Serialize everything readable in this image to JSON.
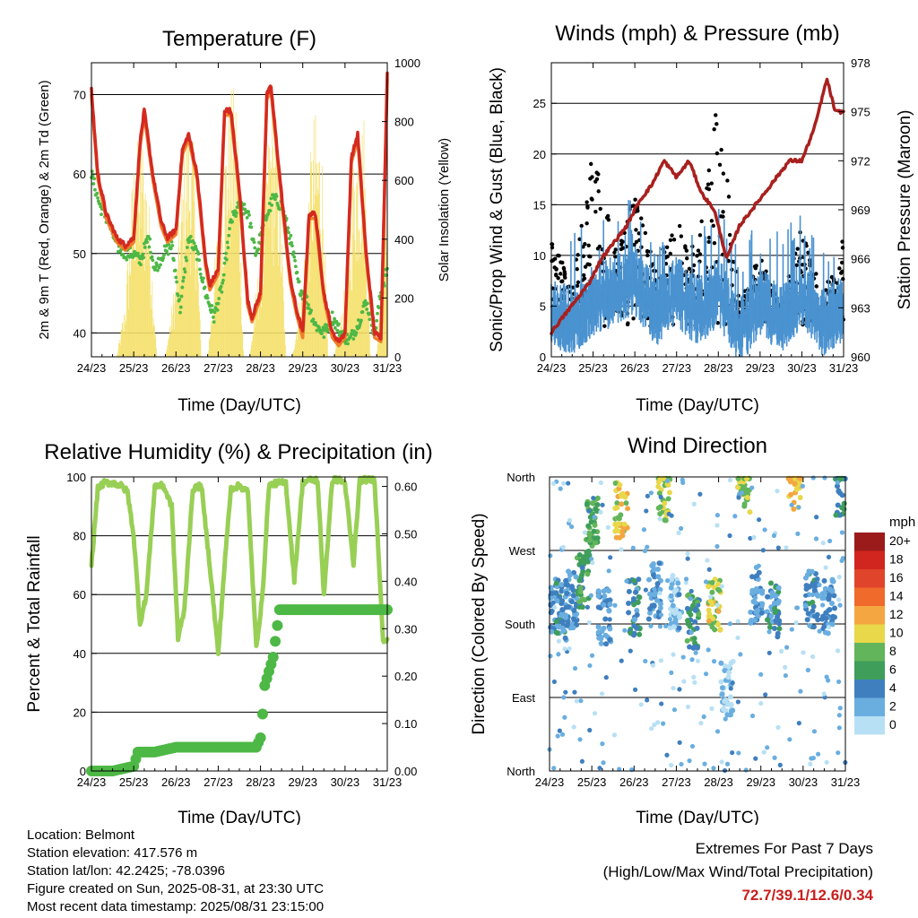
{
  "panels": {
    "temperature": {
      "title": "Temperature (F)",
      "ylabel_left": "2m & 9m T (Red, Orange) & 2m Td (Green)",
      "ylabel_right": "Solar Insolation (Yellow)",
      "xlabel": "Time (Day/UTC)"
    },
    "winds": {
      "title": "Winds (mph) & Pressure (mb)",
      "ylabel_left": "Sonic/Prop Wind & Gust (Blue, Black)",
      "ylabel_right": "Station Pressure (Maroon)",
      "xlabel": "Time (Day/UTC)"
    },
    "humidity": {
      "title": "Relative Humidity (%) & Precipitation (in)",
      "ylabel_left": "Percent & Total Rainfall",
      "xlabel": "Time (Day/UTC)"
    },
    "direction": {
      "title": "Wind Direction",
      "ylabel_left": "Direction (Colored By Speed)",
      "xlabel": "Time (Day/UTC)",
      "legend_title": "mph",
      "legend_labels": [
        "20+",
        "18",
        "16",
        "14",
        "12",
        "10",
        "8",
        "6",
        "4",
        "2",
        "0"
      ],
      "legend_colors": [
        "#9b1b1b",
        "#d0261f",
        "#e0442a",
        "#f06a2c",
        "#f4a640",
        "#e8d84a",
        "#62b55a",
        "#3e9e5a",
        "#3f7fbf",
        "#6aaee0",
        "#b8e0f4"
      ]
    }
  },
  "info": {
    "location": "Location: Belmont",
    "elevation": "Station elevation: 417.576 m",
    "latlon": "Station lat/lon: 42.2425; -78.0396",
    "created": "Figure created on Sun, 2025-08-31, at 23:30 UTC",
    "latest": "Most recent data timestamp: 2025/08/31 23:15:00"
  },
  "extremes": {
    "heading": "Extremes For Past 7 Days",
    "subheading": "(High/Low/Max Wind/Total Precipitation)",
    "values": "72.7/39.1/12.6/0.34"
  },
  "colors": {
    "temp_2m": "#d42a20",
    "temp_9m": "#f07d2a",
    "dewpoint": "#4db845",
    "solar": "#f5e06a",
    "wind": "#4a92d0",
    "gust": "#000000",
    "pressure": "#a8201e",
    "rh": "#98cf55",
    "precip": "#4db845"
  },
  "chart_data": [
    {
      "type": "line",
      "title": "Temperature (F)",
      "xlabel": "Time (Day/UTC)",
      "x_ticks": [
        "24/23",
        "25/23",
        "26/23",
        "27/23",
        "28/23",
        "29/23",
        "30/23",
        "31/23"
      ],
      "ylim": [
        37,
        74
      ],
      "y_ticks": [
        40,
        50,
        60,
        70
      ],
      "y2lim": [
        0,
        1000
      ],
      "y2_ticks": [
        0,
        200,
        400,
        600,
        800,
        1000
      ],
      "series": [
        {
          "name": "2m T",
          "x_days": [
            0,
            0.15,
            0.35,
            0.6,
            0.8,
            1.0,
            1.15,
            1.25,
            1.45,
            1.65,
            1.8,
            2.0,
            2.15,
            2.3,
            2.5,
            2.7,
            2.8,
            3.0,
            3.15,
            3.3,
            3.5,
            3.7,
            3.8,
            4.0,
            4.15,
            4.25,
            4.45,
            4.7,
            4.85,
            5.0,
            5.15,
            5.3,
            5.5,
            5.7,
            5.85,
            6.0,
            6.15,
            6.3,
            6.5,
            6.7,
            6.85,
            7.0
          ],
          "values": [
            70.5,
            60,
            55,
            52,
            51,
            52,
            64,
            68,
            60,
            54,
            52,
            53,
            63,
            65,
            60,
            49,
            46,
            48,
            68,
            68,
            58,
            44,
            42,
            45,
            70,
            71,
            60,
            47,
            43,
            40,
            55,
            55,
            45,
            40,
            39,
            40,
            62,
            65,
            50,
            40,
            39.5,
            72.5
          ]
        },
        {
          "name": "2m Td",
          "x_days": [
            0,
            0.2,
            0.4,
            0.6,
            0.8,
            1.0,
            1.15,
            1.35,
            1.5,
            1.7,
            1.9,
            2.1,
            2.3,
            2.5,
            2.7,
            2.9,
            3.1,
            3.3,
            3.5,
            3.7,
            3.9,
            4.1,
            4.3,
            4.5,
            4.7,
            4.9,
            5.1,
            5.3,
            5.5,
            5.7,
            5.9,
            6.1,
            6.3,
            6.5,
            6.7,
            6.85,
            7.0
          ],
          "values": [
            60,
            56,
            54,
            51,
            50,
            50,
            49,
            52,
            48,
            50,
            51,
            43,
            52,
            50,
            45,
            42,
            46,
            54,
            56,
            55,
            50,
            54,
            57,
            56,
            52,
            46,
            44,
            41,
            40,
            42,
            40,
            39,
            41,
            44,
            40,
            45,
            48
          ]
        },
        {
          "name": "Solar",
          "x_days": [
            0,
            0.6,
            0.8,
            1.0,
            1.2,
            1.35,
            1.55,
            1.75,
            2.0,
            2.25,
            2.45,
            2.6,
            2.75,
            3.0,
            3.25,
            3.45,
            3.6,
            3.75,
            4.0,
            4.25,
            4.45,
            4.6,
            4.75,
            5.0,
            5.25,
            5.45,
            5.6,
            5.75,
            6.0,
            6.25,
            6.45,
            6.6,
            6.75,
            7.0
          ],
          "values": [
            0,
            0,
            200,
            700,
            800,
            600,
            0,
            0,
            300,
            850,
            700,
            0,
            0,
            500,
            900,
            950,
            0,
            0,
            400,
            900,
            700,
            0,
            0,
            300,
            850,
            800,
            0,
            0,
            250,
            800,
            850,
            0,
            0,
            950
          ]
        }
      ]
    },
    {
      "type": "line",
      "title": "Winds (mph) & Pressure (mb)",
      "xlabel": "Time (Day/UTC)",
      "x_ticks": [
        "24/23",
        "25/23",
        "26/23",
        "27/23",
        "28/23",
        "29/23",
        "30/23",
        "31/23"
      ],
      "ylim": [
        0,
        29
      ],
      "y_ticks": [
        0,
        5,
        10,
        15,
        20,
        25
      ],
      "y2lim": [
        960,
        978
      ],
      "y2_ticks": [
        960,
        963,
        966,
        969,
        972,
        975,
        978
      ],
      "series": [
        {
          "name": "Pressure",
          "x_days": [
            0,
            0.3,
            0.6,
            0.9,
            1.2,
            1.5,
            1.8,
            2.1,
            2.4,
            2.7,
            3.0,
            3.3,
            3.6,
            3.9,
            4.2,
            4.5,
            4.8,
            5.1,
            5.4,
            5.7,
            6.0,
            6.3,
            6.6,
            6.8,
            7.0
          ],
          "values": [
            961.5,
            962.5,
            963.5,
            964.5,
            966,
            967,
            968,
            969.5,
            970.5,
            972,
            971,
            972,
            970,
            969,
            966,
            968,
            969,
            970,
            971,
            972,
            972,
            974,
            977,
            975,
            975
          ]
        },
        {
          "name": "Wind",
          "x_days": [
            0,
            0.5,
            1.0,
            1.5,
            2.0,
            2.5,
            3.0,
            3.5,
            4.0,
            4.5,
            5.0,
            5.5,
            6.0,
            6.5,
            7.0
          ],
          "values": [
            4,
            3,
            5,
            6,
            7,
            4,
            6,
            4,
            6,
            2,
            5,
            3,
            6,
            3,
            4
          ]
        },
        {
          "name": "Gust",
          "x_days": [
            0,
            0.5,
            1.0,
            1.5,
            2.0,
            2.5,
            3.0,
            3.5,
            4.0,
            4.5,
            5.0,
            5.5,
            6.0,
            6.5,
            7.0
          ],
          "values": [
            12,
            7,
            21,
            11,
            16,
            9,
            14,
            10,
            27,
            6,
            10,
            5,
            13,
            6,
            12
          ]
        }
      ]
    },
    {
      "type": "line",
      "title": "Relative Humidity (%) & Precipitation (in)",
      "xlabel": "Time (Day/UTC)",
      "x_ticks": [
        "24/23",
        "25/23",
        "26/23",
        "27/23",
        "28/23",
        "29/23",
        "30/23",
        "31/23"
      ],
      "ylim": [
        0,
        100
      ],
      "y_ticks": [
        0,
        20,
        40,
        60,
        80,
        100
      ],
      "y2lim": [
        0,
        0.62
      ],
      "y2_ticks": [
        0.0,
        0.1,
        0.2,
        0.3,
        0.4,
        0.5,
        0.6
      ],
      "series": [
        {
          "name": "RH",
          "x_days": [
            0,
            0.15,
            0.3,
            0.5,
            0.7,
            0.85,
            1.0,
            1.15,
            1.3,
            1.5,
            1.7,
            1.9,
            2.05,
            2.2,
            2.4,
            2.6,
            2.8,
            3.0,
            3.15,
            3.3,
            3.5,
            3.7,
            3.9,
            4.05,
            4.2,
            4.4,
            4.6,
            4.8,
            5.0,
            5.2,
            5.35,
            5.5,
            5.7,
            5.85,
            6.0,
            6.2,
            6.35,
            6.5,
            6.7,
            6.9,
            7.0
          ],
          "values": [
            70,
            96,
            98,
            98,
            97,
            95,
            80,
            50,
            60,
            97,
            97,
            90,
            45,
            55,
            96,
            97,
            70,
            40,
            70,
            96,
            97,
            95,
            42,
            60,
            97,
            98,
            98,
            65,
            98,
            99,
            99,
            60,
            99,
            99,
            98,
            70,
            99,
            99,
            99,
            45,
            44
          ]
        },
        {
          "name": "Precip",
          "x_days": [
            0,
            0.5,
            1.0,
            1.1,
            1.5,
            2.0,
            2.5,
            3.0,
            3.5,
            3.9,
            4.0,
            4.05,
            4.1,
            4.2,
            4.3,
            4.45,
            5.0,
            5.5,
            6.0,
            6.5,
            7.0
          ],
          "values": [
            0.0,
            0.0,
            0.01,
            0.04,
            0.04,
            0.05,
            0.05,
            0.05,
            0.05,
            0.05,
            0.07,
            0.12,
            0.18,
            0.21,
            0.24,
            0.34,
            0.34,
            0.34,
            0.34,
            0.34,
            0.34
          ]
        }
      ]
    },
    {
      "type": "scatter",
      "title": "Wind Direction",
      "xlabel": "Time (Day/UTC)",
      "x_ticks": [
        "24/23",
        "25/23",
        "26/23",
        "27/23",
        "28/23",
        "29/23",
        "30/23",
        "31/23"
      ],
      "y_ticks": [
        "North",
        "East",
        "South",
        "West",
        "North"
      ],
      "ylim": [
        0,
        360
      ],
      "series": [
        {
          "name": "Direction",
          "clusters": [
            {
              "day": 0.1,
              "dir": 200,
              "spd": 3
            },
            {
              "day": 0.3,
              "dir": 195,
              "spd": 4
            },
            {
              "day": 0.5,
              "dir": 210,
              "spd": 3
            },
            {
              "day": 0.8,
              "dir": 235,
              "spd": 6
            },
            {
              "day": 1.0,
              "dir": 300,
              "spd": 7
            },
            {
              "day": 1.3,
              "dir": 190,
              "spd": 3
            },
            {
              "day": 1.7,
              "dir": 320,
              "spd": 10
            },
            {
              "day": 2.0,
              "dir": 200,
              "spd": 4
            },
            {
              "day": 2.5,
              "dir": 220,
              "spd": 3
            },
            {
              "day": 2.7,
              "dir": 340,
              "spd": 9
            },
            {
              "day": 3.0,
              "dir": 205,
              "spd": 2
            },
            {
              "day": 3.4,
              "dir": 185,
              "spd": 6
            },
            {
              "day": 3.9,
              "dir": 205,
              "spd": 10
            },
            {
              "day": 4.2,
              "dir": 100,
              "spd": 1
            },
            {
              "day": 4.6,
              "dir": 350,
              "spd": 9
            },
            {
              "day": 4.9,
              "dir": 215,
              "spd": 3
            },
            {
              "day": 5.3,
              "dir": 195,
              "spd": 4
            },
            {
              "day": 5.8,
              "dir": 355,
              "spd": 11
            },
            {
              "day": 6.2,
              "dir": 210,
              "spd": 4
            },
            {
              "day": 6.6,
              "dir": 200,
              "spd": 3
            },
            {
              "day": 6.9,
              "dir": 345,
              "spd": 5
            }
          ]
        }
      ]
    }
  ]
}
